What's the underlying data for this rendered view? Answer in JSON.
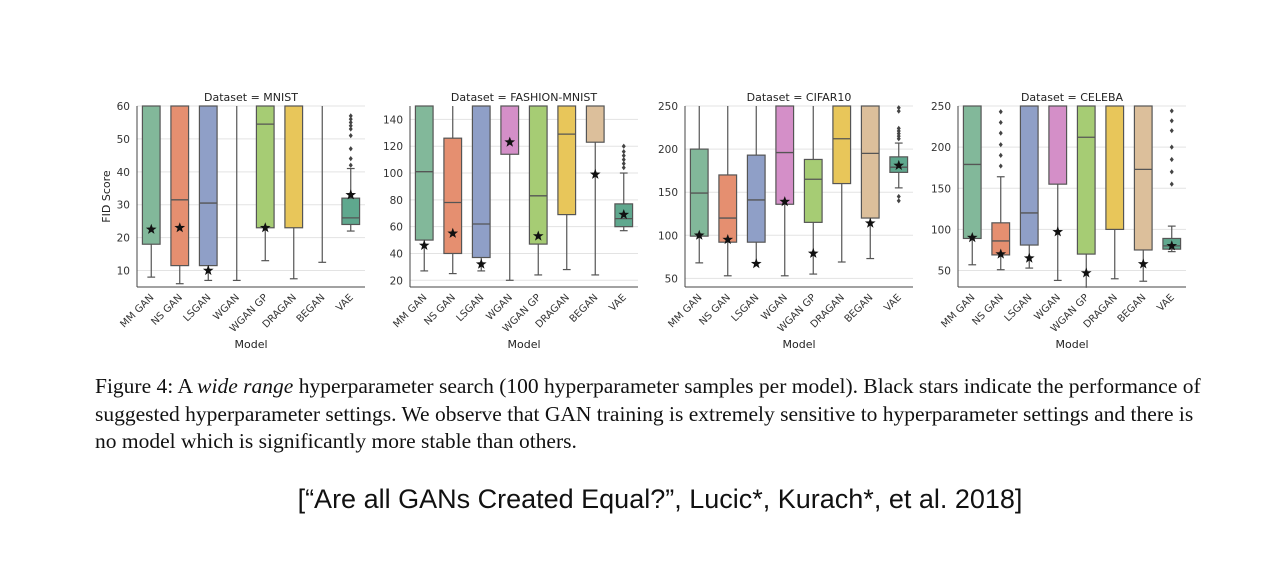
{
  "caption": {
    "label": "Figure 4:",
    "text_a": "A ",
    "text_italic": "wide range",
    "text_b": " hyperparameter search (100 hyperparameter samples per model). Black stars indicate the performance of suggested hyperparameter settings. We observe that GAN training is extremely sensitive to hyperparameter settings and there is no model which is significantly more stable than others."
  },
  "citation": "[“Are all GANs Created Equal?”, Lucic*, Kurach*, et al. 2018]",
  "colors": {
    "MM GAN": "#82b89a",
    "NS GAN": "#e58f70",
    "LSGAN": "#8f9fc7",
    "WGAN": "#d48fc8",
    "WGAN GP": "#a6cc74",
    "DRAGAN": "#e8c65a",
    "BEGAN": "#dcbf9b",
    "VAE": "#5fa88e"
  },
  "chart_data": [
    {
      "type": "box",
      "title": "Dataset = MNIST",
      "xlabel": "Model",
      "ylabel": "FID Score",
      "ylim": [
        5,
        60
      ],
      "yticks": [
        10,
        20,
        30,
        40,
        50,
        60
      ],
      "categories": [
        "MM GAN",
        "NS GAN",
        "LSGAN",
        "WGAN",
        "WGAN GP",
        "DRAGAN",
        "BEGAN",
        "VAE"
      ],
      "boxes": [
        {
          "whislo": 8,
          "q1": 18,
          "med": 60,
          "q3": 60,
          "whishi": 60,
          "star": 22.5
        },
        {
          "whislo": 6,
          "q1": 11.5,
          "med": 31.5,
          "q3": 60,
          "whishi": 60,
          "star": 23
        },
        {
          "whislo": 7,
          "q1": 11.5,
          "med": 30.5,
          "q3": 60,
          "whishi": 60,
          "star": 10
        },
        {
          "whislo": 7,
          "q1": null,
          "med": null,
          "q3": null,
          "whishi": 60,
          "star": null
        },
        {
          "whislo": 13,
          "q1": 23,
          "med": 54.5,
          "q3": 60,
          "whishi": 60,
          "star": 23
        },
        {
          "whislo": 7.5,
          "q1": 23,
          "med": 60,
          "q3": 60,
          "whishi": 60,
          "star": null
        },
        {
          "whislo": 12.5,
          "q1": null,
          "med": null,
          "q3": null,
          "whishi": 60,
          "star": null
        },
        {
          "whislo": 22,
          "q1": 24,
          "med": 26,
          "q3": 32,
          "whishi": 41,
          "star": 33,
          "fliers": [
            42,
            44,
            47,
            51,
            53,
            54,
            55,
            56,
            57
          ]
        }
      ]
    },
    {
      "type": "box",
      "title": "Dataset = FASHION-MNIST",
      "xlabel": "Model",
      "ylabel": "",
      "ylim": [
        15,
        150
      ],
      "yticks": [
        20,
        40,
        60,
        80,
        100,
        120,
        140
      ],
      "categories": [
        "MM GAN",
        "NS GAN",
        "LSGAN",
        "WGAN",
        "WGAN GP",
        "DRAGAN",
        "BEGAN",
        "VAE"
      ],
      "boxes": [
        {
          "whislo": 27,
          "q1": 50,
          "med": 101,
          "q3": 150,
          "whishi": 150,
          "star": 46
        },
        {
          "whislo": 25,
          "q1": 40,
          "med": 78,
          "q3": 126,
          "whishi": 150,
          "star": 55
        },
        {
          "whislo": 27,
          "q1": 37,
          "med": 62,
          "q3": 150,
          "whishi": 150,
          "star": 32
        },
        {
          "whislo": 20,
          "q1": 114,
          "med": 150,
          "q3": 150,
          "whishi": 150,
          "star": 123
        },
        {
          "whislo": 24,
          "q1": 47,
          "med": 83,
          "q3": 150,
          "whishi": 150,
          "star": 53
        },
        {
          "whislo": 28,
          "q1": 69,
          "med": 129,
          "q3": 150,
          "whishi": 150,
          "star": null
        },
        {
          "whislo": 24,
          "q1": 123,
          "med": 150,
          "q3": 150,
          "whishi": 150,
          "star": 99
        },
        {
          "whislo": 57,
          "q1": 60,
          "med": 66,
          "q3": 77,
          "whishi": 100,
          "star": 69,
          "fliers": [
            104,
            107,
            110,
            113,
            116,
            120
          ]
        }
      ]
    },
    {
      "type": "box",
      "title": "Dataset = CIFAR10",
      "xlabel": "Model",
      "ylabel": "",
      "ylim": [
        40,
        250
      ],
      "yticks": [
        50,
        100,
        150,
        200,
        250
      ],
      "categories": [
        "MM GAN",
        "NS GAN",
        "LSGAN",
        "WGAN",
        "WGAN GP",
        "DRAGAN",
        "BEGAN",
        "VAE"
      ],
      "boxes": [
        {
          "whislo": 68,
          "q1": 99,
          "med": 149,
          "q3": 200,
          "whishi": 250,
          "star": 100
        },
        {
          "whislo": 53,
          "q1": 92,
          "med": 120,
          "q3": 170,
          "whishi": 250,
          "star": 95
        },
        {
          "whislo": 68,
          "q1": 92,
          "med": 141,
          "q3": 193,
          "whishi": 250,
          "star": 67
        },
        {
          "whislo": 53,
          "q1": 136,
          "med": 196,
          "q3": 250,
          "whishi": 250,
          "star": 139
        },
        {
          "whislo": 55,
          "q1": 115,
          "med": 165,
          "q3": 188,
          "whishi": 250,
          "star": 79
        },
        {
          "whislo": 69,
          "q1": 160,
          "med": 212,
          "q3": 250,
          "whishi": 250,
          "star": null
        },
        {
          "whislo": 73,
          "q1": 120,
          "med": 195,
          "q3": 250,
          "whishi": 250,
          "star": 114
        },
        {
          "whislo": 155,
          "q1": 173,
          "med": 179,
          "q3": 191,
          "whishi": 207,
          "star": 181,
          "fliers": [
            140,
            145,
            212,
            215,
            218,
            221,
            224,
            244,
            248
          ]
        }
      ]
    },
    {
      "type": "box",
      "title": "Dataset = CELEBA",
      "xlabel": "Model",
      "ylabel": "",
      "ylim": [
        30,
        250
      ],
      "yticks": [
        50,
        100,
        150,
        200,
        250
      ],
      "categories": [
        "MM GAN",
        "NS GAN",
        "LSGAN",
        "WGAN",
        "WGAN GP",
        "DRAGAN",
        "BEGAN",
        "VAE"
      ],
      "boxes": [
        {
          "whislo": 57,
          "q1": 89,
          "med": 179,
          "q3": 250,
          "whishi": 250,
          "star": 90
        },
        {
          "whislo": 51,
          "q1": 69,
          "med": 86,
          "q3": 108,
          "whishi": 164,
          "star": 70,
          "fliers": [
            177,
            190,
            203,
            217,
            230,
            243
          ]
        },
        {
          "whislo": 53,
          "q1": 81,
          "med": 120,
          "q3": 250,
          "whishi": 250,
          "star": 65
        },
        {
          "whislo": 38,
          "q1": 155,
          "med": 250,
          "q3": 250,
          "whishi": 250,
          "star": 97
        },
        {
          "whislo": 29,
          "q1": 70,
          "med": 212,
          "q3": 250,
          "whishi": 250,
          "star": 47
        },
        {
          "whislo": 40,
          "q1": 100,
          "med": 250,
          "q3": 250,
          "whishi": 250,
          "star": null
        },
        {
          "whislo": 37,
          "q1": 75,
          "med": 173,
          "q3": 250,
          "whishi": 250,
          "star": 58
        },
        {
          "whislo": 73,
          "q1": 76,
          "med": 80,
          "q3": 89,
          "whishi": 104,
          "star": 80,
          "fliers": [
            155,
            170,
            185,
            200,
            220,
            232,
            244
          ]
        }
      ]
    }
  ]
}
